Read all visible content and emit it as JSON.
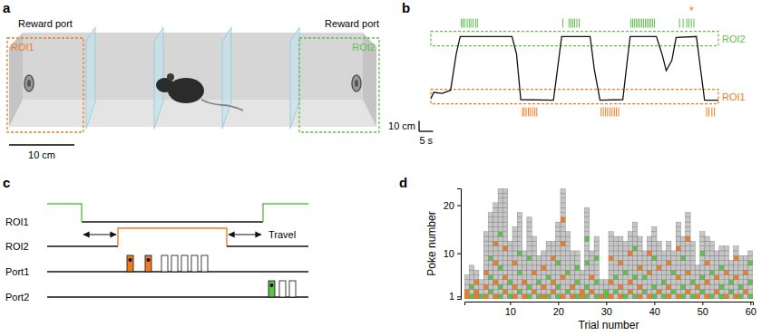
{
  "panel_labels": [
    "a",
    "b",
    "c",
    "d"
  ],
  "diagram_a": {
    "port_labels": [
      "Reward port",
      "Reward port"
    ],
    "roi_labels": [
      "ROI1",
      "ROI2"
    ],
    "scale_bar": "10 cm"
  },
  "diagram_c": {
    "rows": [
      "ROI1",
      "ROI2",
      "Port1",
      "Port2"
    ],
    "travel": "Travel"
  },
  "chart_data": [
    {
      "type": "line",
      "x": [
        0,
        1,
        4,
        7,
        9,
        10.4,
        28.8,
        30.4,
        31.9,
        43.5,
        44.9,
        46.4,
        56.5,
        58,
        60,
        68.1,
        69.6,
        70.7,
        80,
        82,
        83.5,
        85.5,
        87,
        94.2,
        95.7,
        97.1,
        102
      ],
      "values": [
        3,
        9,
        8,
        11,
        46,
        63,
        63,
        46,
        2,
        1.5,
        31,
        63,
        63,
        31,
        1.5,
        2,
        38,
        63,
        63,
        46,
        30,
        40,
        62,
        63,
        31,
        1.5,
        1.5
      ],
      "color": "#111111",
      "xlim": [
        0,
        102
      ],
      "ylim": [
        -5,
        72
      ],
      "tick_labels": false,
      "regions": [
        {
          "name": "ROI1",
          "range": [
            -2,
            12
          ],
          "color": "#f07c22",
          "pokes": [
            32.5,
            33.1,
            33.8,
            34.6,
            35.3,
            36.1,
            36.9,
            37.6,
            60.4,
            61.2,
            62.0,
            62.7,
            63.5,
            64.3,
            65.1,
            65.8,
            66.6,
            97.8,
            98.6,
            99.7,
            100.6
          ]
        },
        {
          "name": "ROI2",
          "range": [
            54,
            68
          ],
          "color": "#5dc04a",
          "pokes": [
            10.8,
            11.4,
            12.0,
            12.9,
            13.6,
            14.2,
            15.0,
            15.9,
            16.5,
            46.8,
            49.0,
            49.7,
            50.4,
            51.0,
            51.8,
            52.6,
            71.0,
            71.6,
            72.2,
            72.9,
            73.5,
            74.1,
            74.8,
            75.4,
            76.1,
            76.7,
            77.4,
            78.0,
            78.7,
            79.3,
            88.2,
            89.5,
            90.8,
            91.6,
            92.4,
            93.3
          ]
        }
      ],
      "annotations": [
        {
          "text": "*",
          "x": 92.4,
          "color": "#f07c22"
        }
      ],
      "scale_bars": [
        {
          "label": "10 cm",
          "value": 10,
          "axis": "y"
        },
        {
          "label": "5 s",
          "value": 5,
          "axis": "x"
        }
      ]
    },
    {
      "type": "grid",
      "x": [
        1,
        2,
        3,
        4,
        5,
        6,
        7,
        8,
        9,
        10,
        11,
        12,
        13,
        14,
        15,
        16,
        17,
        18,
        19,
        20,
        21,
        22,
        23,
        24,
        25,
        26,
        27,
        28,
        29,
        30,
        31,
        32,
        33,
        34,
        35,
        36,
        37,
        38,
        39,
        40,
        41,
        42,
        43,
        44,
        45,
        46,
        47,
        48,
        49,
        50,
        51,
        52,
        53,
        54,
        55,
        56,
        57,
        58,
        59,
        60
      ],
      "values": [
        5,
        7,
        6,
        4,
        14,
        18,
        20,
        23,
        23,
        12,
        15,
        18,
        10,
        17,
        13,
        9,
        10,
        12,
        12,
        16,
        23,
        14,
        10,
        10,
        6,
        19,
        10,
        13,
        4,
        4,
        14,
        13,
        13,
        12,
        14,
        16,
        13,
        10,
        13,
        15,
        12,
        10,
        12,
        10,
        16,
        13,
        18,
        12,
        7,
        14,
        13,
        12,
        10,
        11,
        11,
        8,
        11,
        9,
        9,
        10
      ],
      "color": "#c6c6c6",
      "rewards": [
        {
          "color": "#f07c22",
          "pokes": [
            [
              1,
              2
            ],
            [],
            [
              1,
              2,
              4
            ],
            [],
            [
              1,
              3,
              6
            ],
            [],
            [
              1,
              4,
              8,
              12
            ],
            [],
            [
              2,
              5,
              11
            ],
            [],
            [
              1,
              3,
              8
            ],
            [],
            [
              1,
              4
            ],
            [],
            [
              2,
              6
            ],
            [],
            [
              1,
              3,
              7
            ],
            [],
            [
              2,
              4,
              9
            ],
            [],
            [
              1,
              5,
              12,
              17
            ],
            [],
            [
              1,
              3
            ],
            [],
            [
              1,
              2
            ],
            [],
            [
              2,
              5
            ],
            [],
            [
              1
            ],
            [],
            [
              1,
              4,
              9
            ],
            [],
            [
              1,
              3,
              8
            ],
            [],
            [
              2,
              4,
              10
            ],
            [],
            [
              1,
              3,
              7
            ],
            [],
            [
              1,
              6,
              10
            ],
            [],
            [
              2,
              7
            ],
            [],
            [
              1,
              3,
              8
            ],
            [],
            [
              1,
              5,
              11
            ],
            [],
            [
              2,
              6,
              13
            ],
            [],
            [
              1,
              3
            ],
            [],
            [
              1,
              4,
              8
            ],
            [],
            [
              2,
              5
            ],
            [],
            [
              1,
              6
            ],
            [],
            [
              1,
              5,
              9
            ],
            [],
            [
              2,
              6
            ],
            []
          ]
        },
        {
          "color": "#5dc04a",
          "pokes": [
            [],
            [
              1,
              3
            ],
            [],
            [
              1
            ],
            [],
            [
              2,
              5,
              9
            ],
            [],
            [
              1,
              3,
              7,
              14
            ],
            [],
            [
              1,
              4
            ],
            [],
            [
              2,
              6,
              10
            ],
            [],
            [
              1,
              3,
              9
            ],
            [],
            [
              1,
              4
            ],
            [],
            [
              1,
              5
            ],
            [],
            [
              1,
              3,
              8
            ],
            [],
            [
              2,
              6
            ],
            [],
            [
              1,
              4,
              7
            ],
            [],
            [
              1,
              3,
              8,
              13
            ],
            [],
            [
              1,
              4,
              9
            ],
            [],
            [
              1,
              2
            ],
            [],
            [
              2,
              5
            ],
            [],
            [
              1,
              6
            ],
            [],
            [
              1,
              5,
              11
            ],
            [],
            [
              2,
              5
            ],
            [],
            [
              1,
              3,
              9
            ],
            [],
            [
              1,
              4
            ],
            [],
            [
              2,
              6
            ],
            [],
            [
              1,
              3,
              9
            ],
            [],
            [
              1,
              4
            ],
            [],
            [
              2,
              5,
              10
            ],
            [],
            [
              1,
              6
            ],
            [],
            [
              1,
              3,
              7
            ],
            [],
            [
              2,
              4
            ],
            [],
            [
              1,
              3
            ],
            [],
            [
              1,
              4,
              8
            ]
          ]
        }
      ],
      "xlim": [
        0.5,
        60.5
      ],
      "ylim": [
        0.5,
        23.5
      ],
      "xticks": [
        10,
        20,
        30,
        40,
        50,
        60
      ],
      "yticks": [
        1,
        10,
        20
      ],
      "x_label": "Trial number",
      "y_label": "Poke number"
    }
  ]
}
